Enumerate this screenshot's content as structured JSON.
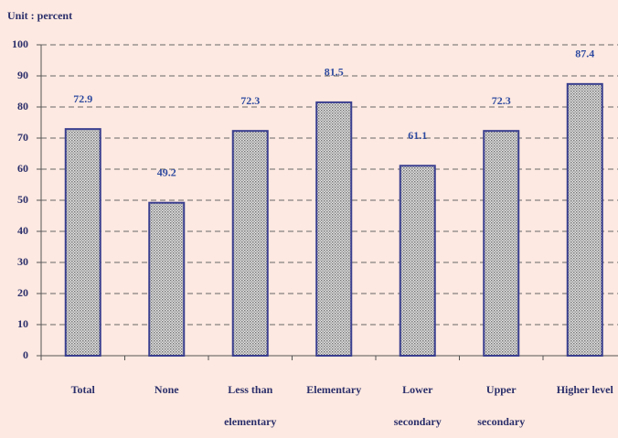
{
  "chart_data": {
    "type": "bar",
    "subtitle": "Unit : percent",
    "categories": [
      "Total",
      "None",
      "Less than elementary",
      "Elementary",
      "Lower secondary",
      "Upper secondary",
      "Higher level"
    ],
    "values": [
      72.9,
      49.2,
      72.3,
      81.5,
      61.1,
      72.3,
      87.4
    ],
    "color": "#b0b0b0",
    "edge_color": "#3a3f8f",
    "ylim": [
      0,
      100
    ],
    "yticks": [
      0,
      10,
      20,
      30,
      40,
      50,
      60,
      70,
      80,
      90,
      100
    ],
    "grid": true
  }
}
